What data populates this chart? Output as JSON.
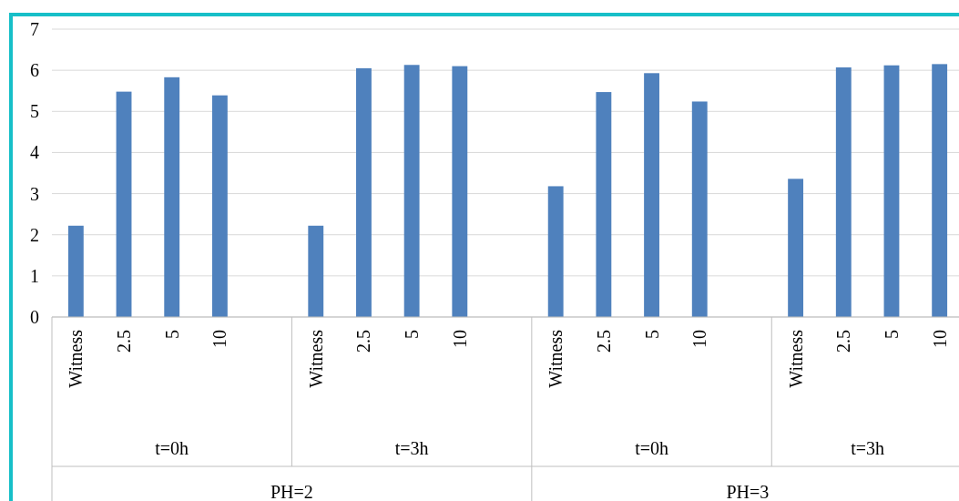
{
  "chart_data": {
    "type": "bar",
    "categories": [
      "Witness",
      "2.5",
      "5",
      "10",
      null,
      "Witness",
      "2.5",
      "5",
      "10",
      null,
      "Witness",
      "2.5",
      "5",
      "10",
      null,
      "Witness",
      "2.5",
      "5",
      "10"
    ],
    "values": [
      2.22,
      5.48,
      5.83,
      5.39,
      null,
      2.22,
      6.05,
      6.13,
      6.1,
      null,
      3.18,
      5.47,
      5.93,
      5.24,
      null,
      3.36,
      6.07,
      6.12,
      6.15
    ],
    "color": "#4f81bd",
    "ylim": [
      0,
      7
    ],
    "yticks": [
      0,
      1,
      2,
      3,
      4,
      5,
      6,
      7
    ],
    "grid": "y",
    "annotations": [
      "t=0h",
      "t=3h",
      "t=0h",
      "t=3h",
      "PH=2",
      "PH=3"
    ]
  }
}
